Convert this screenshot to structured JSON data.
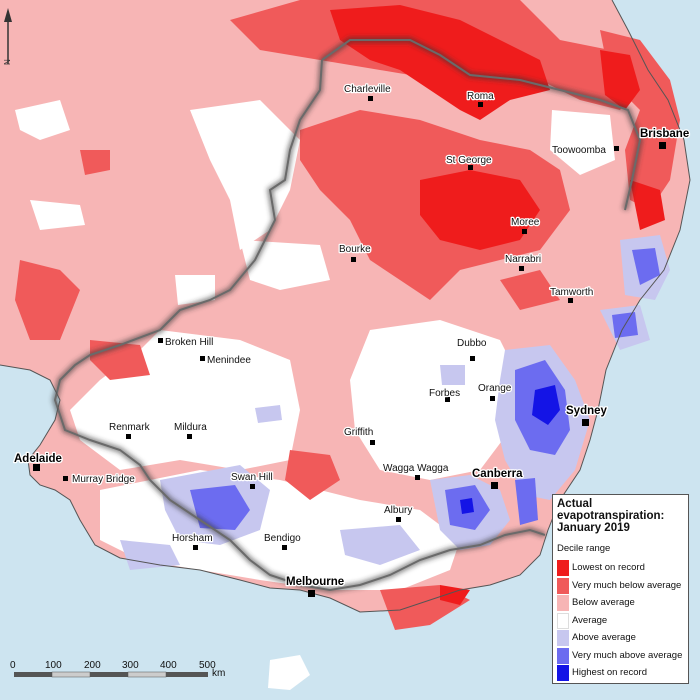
{
  "legend": {
    "title_line1": "Actual",
    "title_line2": "evapotranspiration:",
    "title_line3": "January 2019",
    "subtitle": "Decile range",
    "items": [
      {
        "label": "Lowest on record",
        "color": "#ef1c1c"
      },
      {
        "label": "Very much below average",
        "color": "#f05a5a"
      },
      {
        "label": "Below average",
        "color": "#f7b5b5"
      },
      {
        "label": "Average",
        "color": "#ffffff"
      },
      {
        "label": "Above average",
        "color": "#c7c7ef"
      },
      {
        "label": "Very much above average",
        "color": "#6c6cf0"
      },
      {
        "label": "Highest on record",
        "color": "#1414e6"
      }
    ]
  },
  "places": {
    "charleville": "Charleville",
    "roma": "Roma",
    "brisbane": "Brisbane",
    "toowoomba": "Toowoomba",
    "st_george": "St George",
    "moree": "Moree",
    "bourke": "Bourke",
    "narrabri": "Narrabri",
    "tamworth": "Tamworth",
    "broken_hill": "Broken Hill",
    "menindee": "Menindee",
    "dubbo": "Dubbo",
    "orange": "Orange",
    "forbes": "Forbes",
    "sydney": "Sydney",
    "renmark": "Renmark",
    "mildura": "Mildura",
    "griffith": "Griffith",
    "adelaide": "Adelaide",
    "wagga_wagga": "Wagga Wagga",
    "canberra": "Canberra",
    "murray_bridge": "Murray Bridge",
    "swan_hill": "Swan Hill",
    "albury": "Albury",
    "horsham": "Horsham",
    "bendigo": "Bendigo",
    "melbourne": "Melbourne"
  },
  "scale": {
    "ticks": [
      "0",
      "100",
      "200",
      "300",
      "400",
      "500"
    ],
    "unit": "km"
  },
  "north_label": "N"
}
